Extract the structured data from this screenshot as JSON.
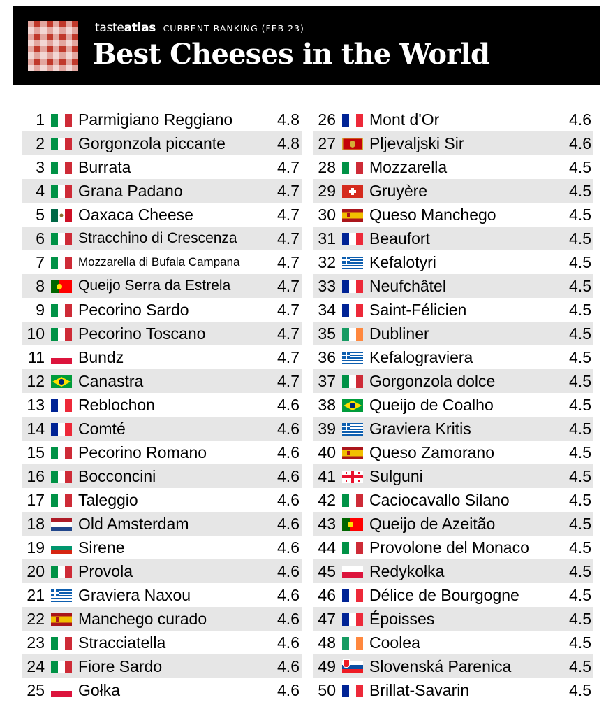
{
  "header": {
    "brand_a": "taste",
    "brand_b": "atlas",
    "ranking_label": "CURRENT RANKING (FEB 23)",
    "title": "Best Cheeses in the World"
  },
  "flag_colors": {
    "it": [
      "#009246",
      "#ffffff",
      "#ce2b37"
    ],
    "fr": [
      "#002395",
      "#ffffff",
      "#ed2939"
    ],
    "ie": [
      "#169b62",
      "#ffffff",
      "#ff883e"
    ],
    "mx": [
      "#006847",
      "#ffffff",
      "#ce1126"
    ],
    "nl": [
      "#ae1c28",
      "#ffffff",
      "#21468b"
    ],
    "bg": [
      "#ffffff",
      "#00966e",
      "#d62612"
    ],
    "pl": [
      "#ffffff",
      "#dc143c"
    ],
    "sk": [
      "#ffffff",
      "#0b4ea2",
      "#ee1c25"
    ]
  },
  "rankings": [
    {
      "rank": "1",
      "country": "it",
      "name": "Parmigiano Reggiano",
      "score": "4.8"
    },
    {
      "rank": "2",
      "country": "it",
      "name": "Gorgonzola piccante",
      "score": "4.8"
    },
    {
      "rank": "3",
      "country": "it",
      "name": "Burrata",
      "score": "4.7"
    },
    {
      "rank": "4",
      "country": "it",
      "name": "Grana Padano",
      "score": "4.7"
    },
    {
      "rank": "5",
      "country": "mx",
      "name": "Oaxaca Cheese",
      "score": "4.7"
    },
    {
      "rank": "6",
      "country": "it",
      "name": "Stracchino di Crescenza",
      "score": "4.7"
    },
    {
      "rank": "7",
      "country": "it",
      "name": "Mozzarella di Bufala Campana",
      "score": "4.7"
    },
    {
      "rank": "8",
      "country": "pt",
      "name": "Queijo Serra da Estrela",
      "score": "4.7"
    },
    {
      "rank": "9",
      "country": "it",
      "name": "Pecorino Sardo",
      "score": "4.7"
    },
    {
      "rank": "10",
      "country": "it",
      "name": "Pecorino Toscano",
      "score": "4.7"
    },
    {
      "rank": "11",
      "country": "pl",
      "name": "Bundz",
      "score": "4.7"
    },
    {
      "rank": "12",
      "country": "br",
      "name": "Canastra",
      "score": "4.7"
    },
    {
      "rank": "13",
      "country": "fr",
      "name": "Reblochon",
      "score": "4.6"
    },
    {
      "rank": "14",
      "country": "fr",
      "name": "Comté",
      "score": "4.6"
    },
    {
      "rank": "15",
      "country": "it",
      "name": "Pecorino Romano",
      "score": "4.6"
    },
    {
      "rank": "16",
      "country": "it",
      "name": "Bocconcini",
      "score": "4.6"
    },
    {
      "rank": "17",
      "country": "it",
      "name": "Taleggio",
      "score": "4.6"
    },
    {
      "rank": "18",
      "country": "nl",
      "name": "Old Amsterdam",
      "score": "4.6"
    },
    {
      "rank": "19",
      "country": "bg",
      "name": "Sirene",
      "score": "4.6"
    },
    {
      "rank": "20",
      "country": "it",
      "name": "Provola",
      "score": "4.6"
    },
    {
      "rank": "21",
      "country": "gr",
      "name": "Graviera Naxou",
      "score": "4.6"
    },
    {
      "rank": "22",
      "country": "es",
      "name": "Manchego curado",
      "score": "4.6"
    },
    {
      "rank": "23",
      "country": "it",
      "name": "Stracciatella",
      "score": "4.6"
    },
    {
      "rank": "24",
      "country": "it",
      "name": "Fiore Sardo",
      "score": "4.6"
    },
    {
      "rank": "25",
      "country": "pl",
      "name": "Gołka",
      "score": "4.6"
    },
    {
      "rank": "26",
      "country": "fr",
      "name": "Mont d'Or",
      "score": "4.6"
    },
    {
      "rank": "27",
      "country": "me",
      "name": "Pljevaljski Sir",
      "score": "4.6"
    },
    {
      "rank": "28",
      "country": "it",
      "name": "Mozzarella",
      "score": "4.5"
    },
    {
      "rank": "29",
      "country": "ch",
      "name": "Gruyère",
      "score": "4.5"
    },
    {
      "rank": "30",
      "country": "es",
      "name": "Queso Manchego",
      "score": "4.5"
    },
    {
      "rank": "31",
      "country": "fr",
      "name": "Beaufort",
      "score": "4.5"
    },
    {
      "rank": "32",
      "country": "gr",
      "name": "Kefalotyri",
      "score": "4.5"
    },
    {
      "rank": "33",
      "country": "fr",
      "name": "Neufchâtel",
      "score": "4.5"
    },
    {
      "rank": "34",
      "country": "fr",
      "name": "Saint-Félicien",
      "score": "4.5"
    },
    {
      "rank": "35",
      "country": "ie",
      "name": "Dubliner",
      "score": "4.5"
    },
    {
      "rank": "36",
      "country": "gr",
      "name": "Kefalograviera",
      "score": "4.5"
    },
    {
      "rank": "37",
      "country": "it",
      "name": "Gorgonzola dolce",
      "score": "4.5"
    },
    {
      "rank": "38",
      "country": "br",
      "name": "Queijo de Coalho",
      "score": "4.5"
    },
    {
      "rank": "39",
      "country": "gr",
      "name": "Graviera Kritis",
      "score": "4.5"
    },
    {
      "rank": "40",
      "country": "es",
      "name": "Queso Zamorano",
      "score": "4.5"
    },
    {
      "rank": "41",
      "country": "ge",
      "name": "Sulguni",
      "score": "4.5"
    },
    {
      "rank": "42",
      "country": "it",
      "name": "Caciocavallo Silano",
      "score": "4.5"
    },
    {
      "rank": "43",
      "country": "pt",
      "name": "Queijo de Azeitão",
      "score": "4.5"
    },
    {
      "rank": "44",
      "country": "it",
      "name": "Provolone del Monaco",
      "score": "4.5"
    },
    {
      "rank": "45",
      "country": "pl",
      "name": "Redykołka",
      "score": "4.5"
    },
    {
      "rank": "46",
      "country": "fr",
      "name": "Délice de Bourgogne",
      "score": "4.5"
    },
    {
      "rank": "47",
      "country": "fr",
      "name": "Époisses",
      "score": "4.5"
    },
    {
      "rank": "48",
      "country": "ie",
      "name": "Coolea",
      "score": "4.5"
    },
    {
      "rank": "49",
      "country": "sk",
      "name": "Slovenská Parenica",
      "score": "4.5"
    },
    {
      "rank": "50",
      "country": "fr",
      "name": "Brillat-Savarin",
      "score": "4.5"
    }
  ]
}
